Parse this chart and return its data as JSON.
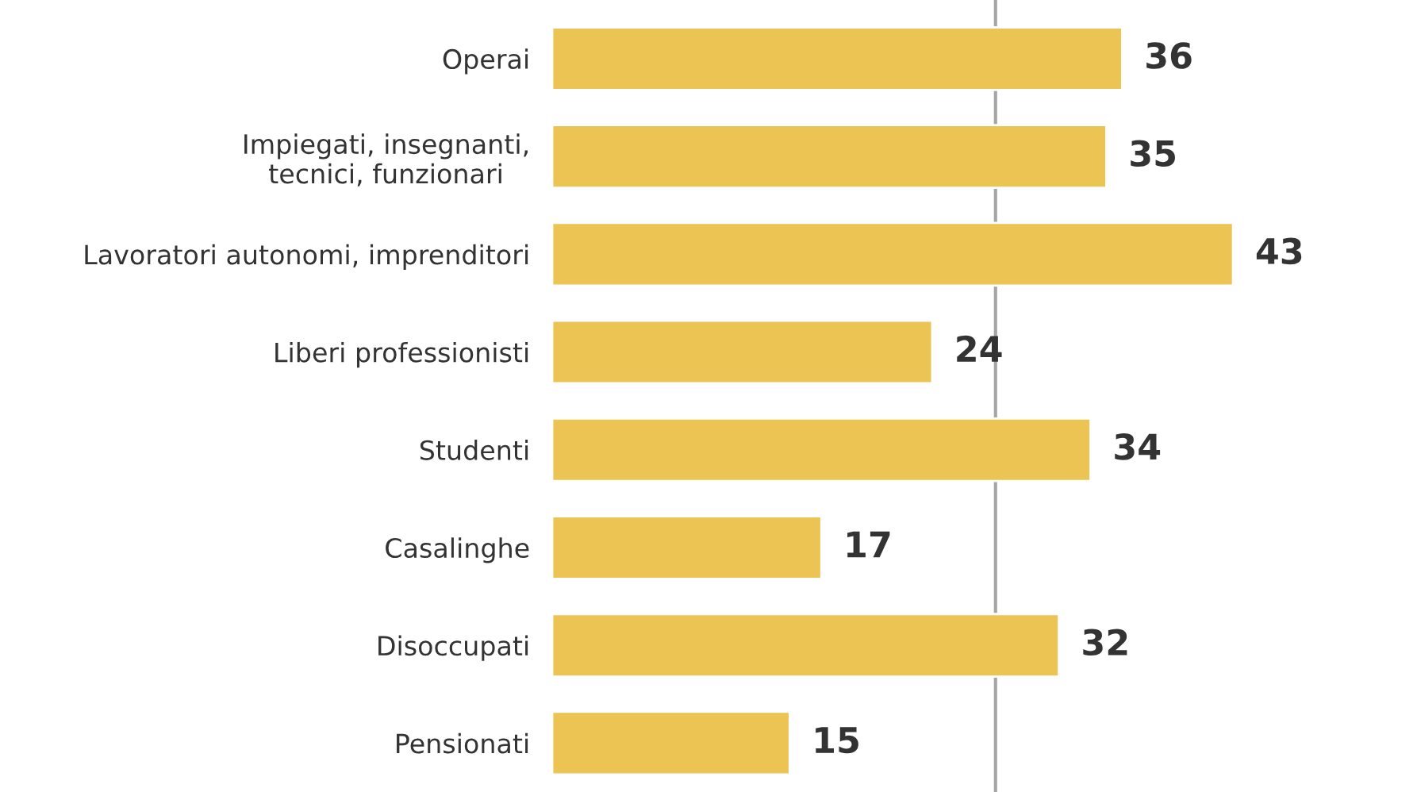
{
  "chart_data": {
    "type": "bar",
    "orientation": "horizontal",
    "categories": [
      "Operai",
      "Impiegati, insegnanti,\ntecnici, funzionari",
      "Lavoratori autonomi, imprenditori",
      "Liberi professionisti",
      "Studenti",
      "Casalinghe",
      "Disoccupati",
      "Pensionati"
    ],
    "values": [
      36,
      35,
      43,
      24,
      34,
      17,
      32,
      15
    ],
    "color": "#ecc453",
    "data_labels": true,
    "grid": false,
    "legend": false,
    "ref_lines": [
      {
        "axis": "x",
        "value": 28,
        "color": "#a6a6a6"
      }
    ]
  }
}
